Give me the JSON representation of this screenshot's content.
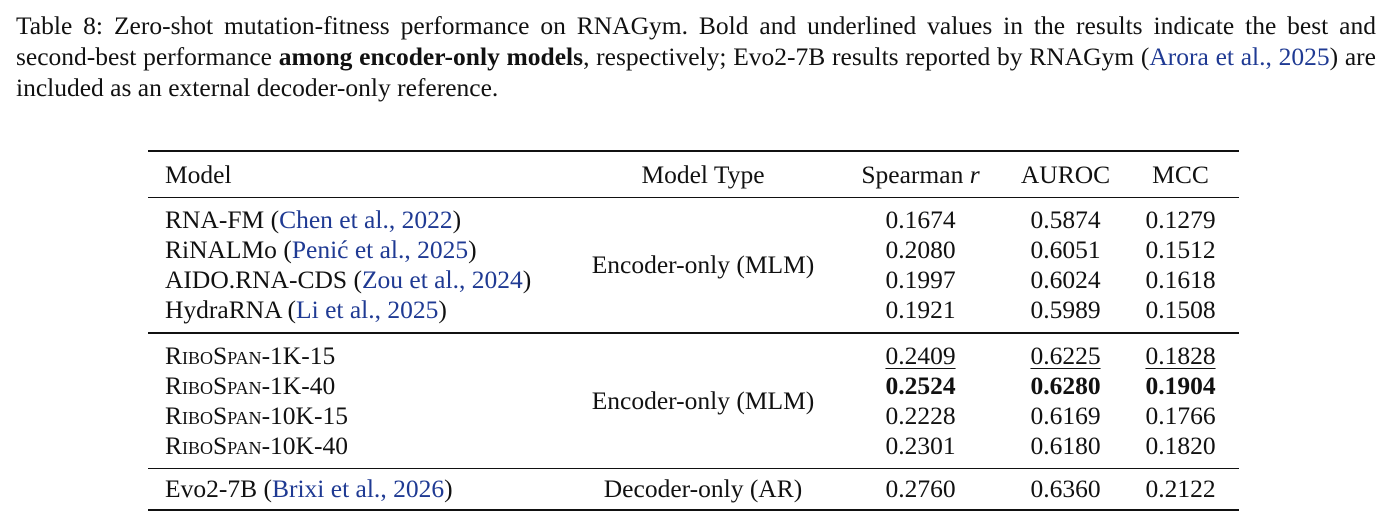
{
  "caption": {
    "label": "Table 8:",
    "text_before_bold": " Zero-shot mutation-fitness performance on RNAGym. Bold and underlined values in the results indicate the best and second-best performance ",
    "bold_phrase": "among encoder-only models",
    "text_after_bold": ", respectively; Evo2-7B results reported by RNAGym (",
    "cite_author": "Arora et al.",
    "cite_sep": ", ",
    "cite_year": "2025",
    "text_end": ") are included as an external decoder-only reference."
  },
  "table": {
    "headers": {
      "model": "Model",
      "model_type": "Model Type",
      "spearman": "Spearman ",
      "spearman_symbol": "r",
      "auroc": "AUROC",
      "mcc": "MCC"
    },
    "groups": [
      {
        "model_type": "Encoder-only (MLM)",
        "rows": [
          {
            "name": "RNA-FM",
            "cite_author": "Chen et al.",
            "cite_year": "2022",
            "spearman": "0.1674",
            "auroc": "0.5874",
            "mcc": "0.1279"
          },
          {
            "name": "RiNALMo",
            "cite_author": "Penić et al.",
            "cite_year": "2025",
            "spearman": "0.2080",
            "auroc": "0.6051",
            "mcc": "0.1512"
          },
          {
            "name": "AIDO.RNA-CDS",
            "cite_author": "Zou et al.",
            "cite_year": "2024",
            "spearman": "0.1997",
            "auroc": "0.6024",
            "mcc": "0.1618"
          },
          {
            "name": "HydraRNA",
            "cite_author": "Li et al.",
            "cite_year": "2025",
            "spearman": "0.1921",
            "auroc": "0.5989",
            "mcc": "0.1508"
          }
        ]
      },
      {
        "model_type": "Encoder-only (MLM)",
        "rows": [
          {
            "name_a": "Ribo",
            "name_b": "Span",
            "name_suffix": "-1K-15",
            "spearman": "0.2409",
            "auroc": "0.6225",
            "mcc": "0.1828",
            "emphasis": "second"
          },
          {
            "name_a": "Ribo",
            "name_b": "Span",
            "name_suffix": "-1K-40",
            "spearman": "0.2524",
            "auroc": "0.6280",
            "mcc": "0.1904",
            "emphasis": "best"
          },
          {
            "name_a": "Ribo",
            "name_b": "Span",
            "name_suffix": "-10K-15",
            "spearman": "0.2228",
            "auroc": "0.6169",
            "mcc": "0.1766",
            "emphasis": "none"
          },
          {
            "name_a": "Ribo",
            "name_b": "Span",
            "name_suffix": "-10K-40",
            "spearman": "0.2301",
            "auroc": "0.6180",
            "mcc": "0.1820",
            "emphasis": "none"
          }
        ]
      },
      {
        "model_type": "Decoder-only (AR)",
        "rows": [
          {
            "name": "Evo2-7B",
            "cite_author": "Brixi et al.",
            "cite_year": "2026",
            "spearman": "0.2760",
            "auroc": "0.6360",
            "mcc": "0.2122"
          }
        ]
      }
    ]
  }
}
